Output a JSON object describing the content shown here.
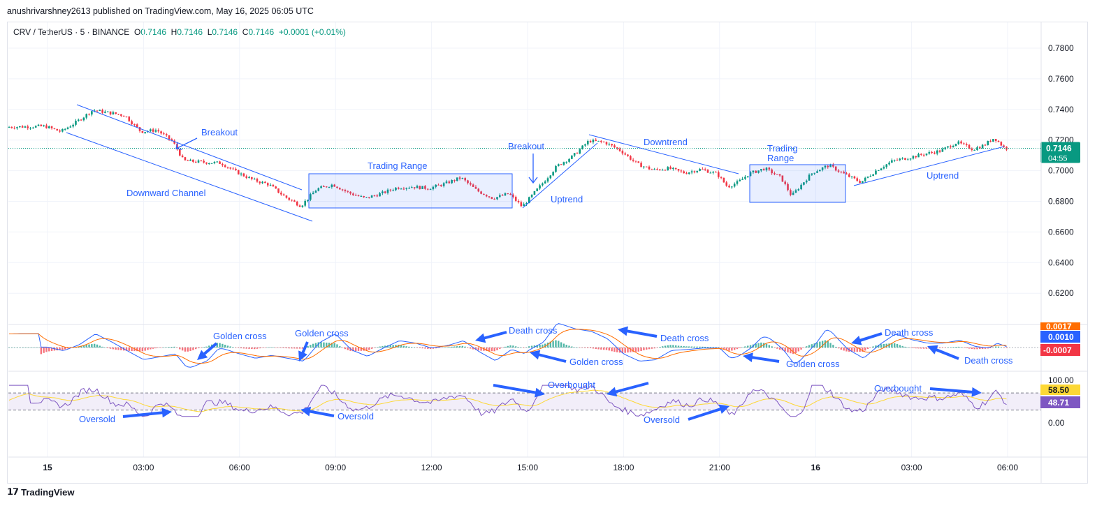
{
  "header": {
    "attribution": "anushrivarshney2613 published on TradingView.com, May 16, 2025 06:05 UTC"
  },
  "symbol": {
    "name": "CRV / TetherUS · 5 · BINANCE",
    "open_label": "O",
    "open": "0.7146",
    "high_label": "H",
    "high": "0.7146",
    "low_label": "L",
    "low": "0.7146",
    "close_label": "C",
    "close": "0.7146",
    "change": "+0.0001 (+0.01%)"
  },
  "colors": {
    "up": "#089981",
    "down": "#f23645",
    "annotation": "#2962ff",
    "macd_line": "#2962ff",
    "signal_line": "#ff6d00",
    "rsi_line": "#7e57c2",
    "rsi_ma": "#fdd835"
  },
  "chart_data": [
    {
      "type": "candlestick",
      "y_ticks": [
        "0.7800",
        "0.7600",
        "0.7400",
        "0.7200",
        "0.7000",
        "0.6800",
        "0.6600",
        "0.6400",
        "0.6200"
      ],
      "ylim": [
        0.6115,
        0.7875
      ],
      "x_ticks": [
        "15",
        "03:00",
        "06:00",
        "09:00",
        "12:00",
        "15:00",
        "18:00",
        "21:00",
        "16",
        "03:00",
        "06:00"
      ],
      "last_price": "0.7146",
      "countdown": "04:55",
      "path_points": [
        [
          "00:00",
          0.729
        ],
        [
          "00:30",
          0.7255
        ],
        [
          "01:00",
          0.732
        ],
        [
          "01:30",
          0.7395
        ],
        [
          "02:15",
          0.737
        ],
        [
          "02:30",
          0.736
        ],
        [
          "03:00",
          0.7255
        ],
        [
          "03:30",
          0.7265
        ],
        [
          "04:00",
          0.719
        ],
        [
          "04:20",
          0.7065
        ],
        [
          "05:00",
          0.7055
        ],
        [
          "05:30",
          0.705
        ],
        [
          "06:00",
          0.699
        ],
        [
          "06:30",
          0.694
        ],
        [
          "07:00",
          0.691
        ],
        [
          "07:30",
          0.683
        ],
        [
          "08:00",
          0.677
        ],
        [
          "08:30",
          0.688
        ],
        [
          "09:00",
          0.691
        ],
        [
          "09:30",
          0.6855
        ],
        [
          "10:00",
          0.682
        ],
        [
          "10:30",
          0.685
        ],
        [
          "11:00",
          0.689
        ],
        [
          "11:30",
          0.6895
        ],
        [
          "12:00",
          0.6885
        ],
        [
          "12:30",
          0.6915
        ],
        [
          "13:00",
          0.6955
        ],
        [
          "13:30",
          0.687
        ],
        [
          "14:00",
          0.682
        ],
        [
          "14:30",
          0.685
        ],
        [
          "14:55",
          0.6765
        ],
        [
          "15:30",
          0.6905
        ],
        [
          "16:00",
          0.703
        ],
        [
          "16:30",
          0.7095
        ],
        [
          "17:00",
          0.7195
        ],
        [
          "17:30",
          0.7185
        ],
        [
          "18:00",
          0.713
        ],
        [
          "18:30",
          0.7045
        ],
        [
          "19:00",
          0.7005
        ],
        [
          "19:30",
          0.7015
        ],
        [
          "20:00",
          0.6985
        ],
        [
          "20:30",
          0.701
        ],
        [
          "21:00",
          0.698
        ],
        [
          "21:20",
          0.6895
        ],
        [
          "21:40",
          0.6925
        ],
        [
          "22:00",
          0.698
        ],
        [
          "22:30",
          0.7015
        ],
        [
          "23:00",
          0.6955
        ],
        [
          "23:20",
          0.6835
        ],
        [
          "23:45",
          0.6935
        ],
        [
          "00:00",
          0.699
        ],
        [
          "00:30",
          0.7035
        ],
        [
          "01:00",
          0.6975
        ],
        [
          "01:30",
          0.6925
        ],
        [
          "02:00",
          0.7005
        ],
        [
          "02:30",
          0.7065
        ],
        [
          "03:00",
          0.7085
        ],
        [
          "03:30",
          0.711
        ],
        [
          "04:00",
          0.713
        ],
        [
          "04:30",
          0.7185
        ],
        [
          "05:00",
          0.714
        ],
        [
          "05:20",
          0.7165
        ],
        [
          "05:40",
          0.7215
        ],
        [
          "06:00",
          0.7146
        ]
      ],
      "annotations": [
        "Breakout",
        "Downward Channel",
        "Trading Range",
        "Breakout",
        "Uptrend",
        "Downtrend",
        "Trading\nRange",
        "Uptrend"
      ]
    },
    {
      "type": "macd",
      "labels": [
        "0.0017",
        "0.0010",
        "-0.0007"
      ],
      "annotations": [
        "Golden cross",
        "Golden cross",
        "Death cross",
        "Death cross",
        "Golden cross",
        "Golden cross",
        "Death cross",
        "Death cross"
      ]
    },
    {
      "type": "rsi",
      "y_ticks": [
        "100.00",
        "0.00"
      ],
      "labels": [
        "58.50",
        "48.71"
      ],
      "upper_band": 70,
      "lower_band": 30,
      "annotations": [
        "Oversold",
        "Oversold",
        "Overbought",
        "Oversold",
        "Overbought"
      ]
    }
  ],
  "footer": {
    "brand": "TradingView"
  }
}
